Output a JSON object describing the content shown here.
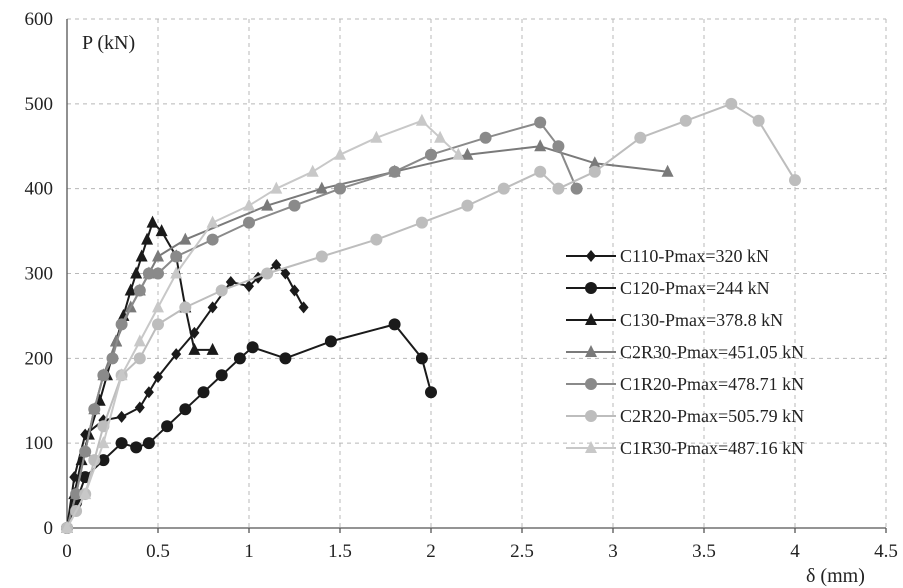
{
  "chart_data": {
    "type": "line",
    "title": "",
    "xlabel": "δ (mm)",
    "ylabel": "P (kN)",
    "xlim": [
      0,
      4.5
    ],
    "ylim": [
      0,
      600
    ],
    "x_ticks": [
      "0",
      "0.5",
      "1",
      "1.5",
      "2",
      "2.5",
      "3",
      "3.5",
      "4",
      "4.5"
    ],
    "y_ticks": [
      "0",
      "100",
      "200",
      "300",
      "400",
      "500",
      "600"
    ],
    "grid": true,
    "legend_position": "right",
    "series": [
      {
        "name": "C110-Pmax=320 kN",
        "color": "#1a1a1a",
        "marker": "diamond",
        "points": [
          [
            0,
            0
          ],
          [
            0.04,
            60
          ],
          [
            0.1,
            110
          ],
          [
            0.2,
            127
          ],
          [
            0.3,
            131
          ],
          [
            0.4,
            142
          ],
          [
            0.45,
            160
          ],
          [
            0.5,
            178
          ],
          [
            0.6,
            205
          ],
          [
            0.7,
            230
          ],
          [
            0.8,
            260
          ],
          [
            0.9,
            290
          ],
          [
            1.0,
            285
          ],
          [
            1.05,
            295
          ],
          [
            1.15,
            310
          ],
          [
            1.2,
            300
          ],
          [
            1.25,
            280
          ],
          [
            1.3,
            260
          ]
        ]
      },
      {
        "name": "C120-Pmax=244 kN",
        "color": "#1a1a1a",
        "marker": "circle",
        "points": [
          [
            0,
            0
          ],
          [
            0.05,
            30
          ],
          [
            0.1,
            60
          ],
          [
            0.2,
            80
          ],
          [
            0.3,
            100
          ],
          [
            0.38,
            95
          ],
          [
            0.45,
            100
          ],
          [
            0.55,
            120
          ],
          [
            0.65,
            140
          ],
          [
            0.75,
            160
          ],
          [
            0.85,
            180
          ],
          [
            0.95,
            200
          ],
          [
            1.02,
            213
          ],
          [
            1.2,
            200
          ],
          [
            1.45,
            220
          ],
          [
            1.8,
            240
          ],
          [
            1.95,
            200
          ],
          [
            2.0,
            160
          ]
        ]
      },
      {
        "name": "C130-Pmax=378.8 kN",
        "color": "#1a1a1a",
        "marker": "triangle",
        "points": [
          [
            0,
            0
          ],
          [
            0.04,
            40
          ],
          [
            0.08,
            80
          ],
          [
            0.12,
            110
          ],
          [
            0.18,
            150
          ],
          [
            0.22,
            180
          ],
          [
            0.27,
            220
          ],
          [
            0.31,
            250
          ],
          [
            0.35,
            280
          ],
          [
            0.38,
            300
          ],
          [
            0.41,
            320
          ],
          [
            0.44,
            340
          ],
          [
            0.47,
            360
          ],
          [
            0.52,
            350
          ],
          [
            0.6,
            320
          ],
          [
            0.65,
            260
          ],
          [
            0.7,
            210
          ],
          [
            0.8,
            210
          ]
        ]
      },
      {
        "name": "C2R30-Pmax=451.05 kN",
        "color": "#7a7a7a",
        "marker": "triangle",
        "points": [
          [
            0,
            0
          ],
          [
            0.05,
            40
          ],
          [
            0.1,
            90
          ],
          [
            0.15,
            140
          ],
          [
            0.2,
            180
          ],
          [
            0.27,
            220
          ],
          [
            0.35,
            260
          ],
          [
            0.4,
            280
          ],
          [
            0.45,
            300
          ],
          [
            0.5,
            320
          ],
          [
            0.65,
            340
          ],
          [
            1.1,
            380
          ],
          [
            1.4,
            400
          ],
          [
            1.8,
            420
          ],
          [
            2.2,
            440
          ],
          [
            2.6,
            450
          ],
          [
            2.9,
            430
          ],
          [
            3.3,
            420
          ]
        ]
      },
      {
        "name": "C1R20-Pmax=478.71 kN",
        "color": "#8a8a8a",
        "marker": "circle",
        "points": [
          [
            0,
            0
          ],
          [
            0.05,
            40
          ],
          [
            0.1,
            90
          ],
          [
            0.15,
            140
          ],
          [
            0.2,
            180
          ],
          [
            0.25,
            200
          ],
          [
            0.3,
            240
          ],
          [
            0.4,
            280
          ],
          [
            0.45,
            300
          ],
          [
            0.5,
            300
          ],
          [
            0.6,
            320
          ],
          [
            0.8,
            340
          ],
          [
            1.0,
            360
          ],
          [
            1.25,
            380
          ],
          [
            1.5,
            400
          ],
          [
            1.8,
            420
          ],
          [
            2.0,
            440
          ],
          [
            2.3,
            460
          ],
          [
            2.6,
            478
          ],
          [
            2.7,
            450
          ],
          [
            2.8,
            400
          ]
        ]
      },
      {
        "name": "C2R20-Pmax=505.79 kN",
        "color": "#bdbdbd",
        "marker": "circle",
        "points": [
          [
            0,
            0
          ],
          [
            0.05,
            20
          ],
          [
            0.1,
            40
          ],
          [
            0.15,
            80
          ],
          [
            0.2,
            120
          ],
          [
            0.3,
            180
          ],
          [
            0.4,
            200
          ],
          [
            0.5,
            240
          ],
          [
            0.65,
            260
          ],
          [
            0.85,
            280
          ],
          [
            1.1,
            300
          ],
          [
            1.4,
            320
          ],
          [
            1.7,
            340
          ],
          [
            1.95,
            360
          ],
          [
            2.2,
            380
          ],
          [
            2.4,
            400
          ],
          [
            2.6,
            420
          ],
          [
            2.7,
            400
          ],
          [
            2.9,
            420
          ],
          [
            3.15,
            460
          ],
          [
            3.4,
            480
          ],
          [
            3.65,
            500
          ],
          [
            3.8,
            480
          ],
          [
            4.0,
            410
          ]
        ]
      },
      {
        "name": "C1R30-Pmax=487.16 kN",
        "color": "#c8c8c8",
        "marker": "triangle",
        "points": [
          [
            0,
            0
          ],
          [
            0.1,
            40
          ],
          [
            0.2,
            100
          ],
          [
            0.3,
            180
          ],
          [
            0.4,
            220
          ],
          [
            0.5,
            260
          ],
          [
            0.6,
            300
          ],
          [
            0.8,
            360
          ],
          [
            1.0,
            380
          ],
          [
            1.15,
            400
          ],
          [
            1.35,
            420
          ],
          [
            1.5,
            440
          ],
          [
            1.7,
            460
          ],
          [
            1.95,
            480
          ],
          [
            2.05,
            460
          ],
          [
            2.15,
            440
          ]
        ]
      }
    ]
  }
}
